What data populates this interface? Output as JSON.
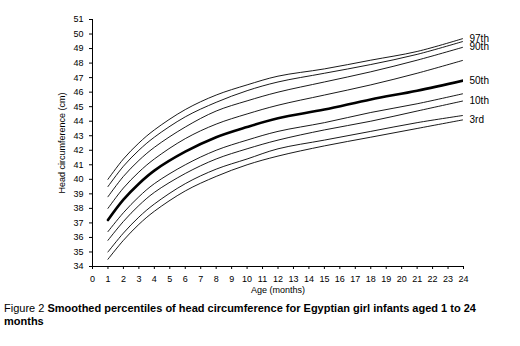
{
  "chart_data": {
    "type": "line",
    "figure_label": "Figure 2",
    "title": "Smoothed percentiles of head circumference for Egyptian girl infants aged 1 to 24 months",
    "x_label": "Age (months)",
    "y_label": "Head circumference (cm)",
    "xlim": [
      0,
      24
    ],
    "xticks": [
      0,
      1,
      2,
      3,
      4,
      5,
      6,
      7,
      8,
      9,
      10,
      11,
      12,
      13,
      14,
      15,
      16,
      17,
      18,
      19,
      20,
      21,
      22,
      23,
      24
    ],
    "ylim": [
      34,
      51
    ],
    "yticks": [
      34,
      35,
      36,
      37,
      38,
      39,
      40,
      41,
      42,
      43,
      44,
      45,
      46,
      47,
      48,
      49,
      50,
      51
    ],
    "grid": false,
    "x": [
      1,
      2,
      3,
      4,
      6,
      8,
      10,
      12,
      15,
      18,
      21,
      24
    ],
    "series": [
      {
        "name": "97th",
        "color": "#000000",
        "line_style": "solid",
        "values": [
          40.0,
          41.4,
          42.5,
          43.4,
          44.8,
          45.8,
          46.5,
          47.1,
          47.6,
          48.2,
          48.8,
          49.7
        ]
      },
      {
        "color": "#000000",
        "line_style": "solid",
        "values": [
          39.5,
          40.9,
          42.0,
          42.9,
          44.3,
          45.3,
          46.1,
          46.7,
          47.3,
          47.9,
          48.6,
          49.5
        ]
      },
      {
        "name": "90th",
        "color": "#000000",
        "line_style": "solid",
        "values": [
          38.8,
          40.2,
          41.3,
          42.2,
          43.6,
          44.7,
          45.4,
          46.0,
          46.7,
          47.4,
          48.2,
          49.1
        ]
      },
      {
        "color": "#000000",
        "line_style": "solid",
        "values": [
          38.0,
          39.4,
          40.5,
          41.4,
          42.8,
          43.8,
          44.5,
          45.1,
          45.8,
          46.5,
          47.3,
          48.2
        ]
      },
      {
        "name": "50th",
        "color": "#000000",
        "line_style": "bold",
        "values": [
          37.2,
          38.6,
          39.7,
          40.6,
          41.9,
          42.9,
          43.6,
          44.2,
          44.8,
          45.5,
          46.1,
          46.8
        ]
      },
      {
        "color": "#000000",
        "line_style": "solid",
        "values": [
          36.4,
          37.7,
          38.8,
          39.7,
          41.0,
          42.0,
          42.7,
          43.3,
          43.9,
          44.6,
          45.2,
          45.9
        ]
      },
      {
        "name": "10th",
        "color": "#000000",
        "line_style": "solid",
        "values": [
          35.8,
          37.1,
          38.2,
          39.1,
          40.4,
          41.4,
          42.1,
          42.7,
          43.4,
          44.0,
          44.7,
          45.4
        ]
      },
      {
        "color": "#000000",
        "line_style": "solid",
        "values": [
          35.0,
          36.3,
          37.4,
          38.3,
          39.7,
          40.7,
          41.4,
          42.1,
          42.7,
          43.3,
          43.9,
          44.4
        ]
      },
      {
        "name": "3rd",
        "color": "#000000",
        "line_style": "solid",
        "values": [
          34.5,
          35.8,
          36.9,
          37.8,
          39.2,
          40.2,
          41.0,
          41.6,
          42.3,
          42.9,
          43.5,
          44.1
        ]
      }
    ]
  }
}
